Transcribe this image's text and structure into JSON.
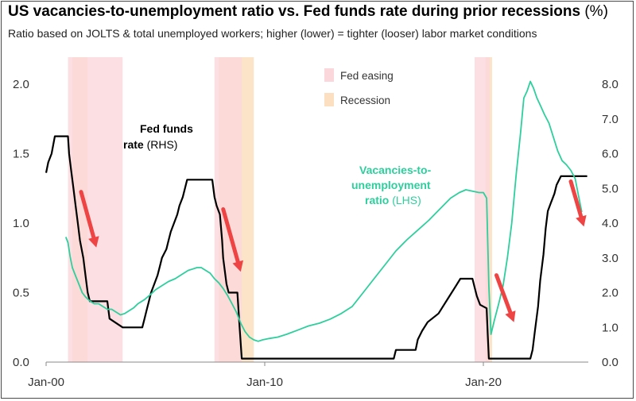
{
  "header": {
    "title": "US vacancies-to-unemployment ratio vs. Fed funds rate during prior recessions",
    "title_unit": "(%)",
    "subtitle": "Ratio based on JOLTS & total unemployed workers; higher (lower) = tighter (looser) labor market conditions"
  },
  "legend": {
    "fed_easing": "Fed easing",
    "recession": "Recession"
  },
  "annotations": {
    "fed_funds_line1": "Fed funds",
    "fed_funds_line2_bold": "rate",
    "fed_funds_line2_rhs": "(RHS)",
    "vu_line1": "Vacancies-to-",
    "vu_line2": "unemployment",
    "vu_line3_bold": "ratio",
    "vu_line3_lhs": "(LHS)"
  },
  "chart_data": {
    "type": "line",
    "title": "US vacancies-to-unemployment ratio vs. Fed funds rate during prior recessions (%)",
    "x_range": [
      2000.0,
      2024.8
    ],
    "x_ticks": [
      {
        "label": "Jan-00",
        "value": 2000
      },
      {
        "label": "Jan-10",
        "value": 2010
      },
      {
        "label": "Jan-20",
        "value": 2020
      }
    ],
    "y_left": {
      "range": [
        0,
        2.0
      ],
      "ticks": [
        "0.0",
        "0.5",
        "1.0",
        "1.5",
        "2.0"
      ]
    },
    "y_right": {
      "range": [
        0,
        8.0
      ],
      "ticks": [
        "0.0",
        "1.0",
        "2.0",
        "3.0",
        "4.0",
        "5.0",
        "6.0",
        "7.0",
        "8.0"
      ]
    },
    "colors": {
      "fed_funds": "#000000",
      "vu_ratio": "#2ecf9c",
      "fed_easing": "#fbd7dc",
      "recession": "#fcdfc0",
      "overlap": "#f6c7b3",
      "arrow": "#ef4444"
    },
    "shaded_periods": [
      {
        "type": "recession",
        "start": 2001.2,
        "end": 2001.9
      },
      {
        "type": "fed_easing",
        "start": 2001.0,
        "end": 2003.5
      },
      {
        "type": "recession",
        "start": 2007.9,
        "end": 2009.5
      },
      {
        "type": "fed_easing",
        "start": 2007.7,
        "end": 2008.95
      },
      {
        "type": "recession",
        "start": 2020.1,
        "end": 2020.4
      },
      {
        "type": "fed_easing",
        "start": 2019.6,
        "end": 2020.3
      }
    ],
    "series": [
      {
        "name": "Fed funds rate",
        "axis": "right",
        "color": "#000000",
        "points": [
          [
            2000.0,
            5.45
          ],
          [
            2000.1,
            5.75
          ],
          [
            2000.25,
            6.0
          ],
          [
            2000.4,
            6.5
          ],
          [
            2000.5,
            6.5
          ],
          [
            2001.0,
            6.5
          ],
          [
            2001.05,
            6.0
          ],
          [
            2001.15,
            5.5
          ],
          [
            2001.25,
            5.0
          ],
          [
            2001.35,
            4.5
          ],
          [
            2001.45,
            4.0
          ],
          [
            2001.55,
            3.5
          ],
          [
            2001.7,
            3.0
          ],
          [
            2001.8,
            2.5
          ],
          [
            2001.9,
            2.0
          ],
          [
            2002.0,
            1.75
          ],
          [
            2002.8,
            1.75
          ],
          [
            2002.9,
            1.25
          ],
          [
            2003.5,
            1.0
          ],
          [
            2004.4,
            1.0
          ],
          [
            2004.5,
            1.25
          ],
          [
            2004.6,
            1.5
          ],
          [
            2004.7,
            1.75
          ],
          [
            2004.8,
            2.0
          ],
          [
            2004.95,
            2.25
          ],
          [
            2005.1,
            2.5
          ],
          [
            2005.2,
            2.75
          ],
          [
            2005.3,
            3.0
          ],
          [
            2005.5,
            3.25
          ],
          [
            2005.6,
            3.5
          ],
          [
            2005.7,
            3.75
          ],
          [
            2005.85,
            4.0
          ],
          [
            2006.0,
            4.25
          ],
          [
            2006.1,
            4.5
          ],
          [
            2006.25,
            4.75
          ],
          [
            2006.45,
            5.25
          ],
          [
            2007.6,
            5.25
          ],
          [
            2007.7,
            4.75
          ],
          [
            2007.8,
            4.5
          ],
          [
            2007.95,
            4.25
          ],
          [
            2008.05,
            3.5
          ],
          [
            2008.1,
            3.0
          ],
          [
            2008.25,
            2.25
          ],
          [
            2008.35,
            2.0
          ],
          [
            2008.75,
            2.0
          ],
          [
            2008.8,
            1.5
          ],
          [
            2008.85,
            1.0
          ],
          [
            2008.95,
            0.1
          ],
          [
            2015.9,
            0.1
          ],
          [
            2016.0,
            0.35
          ],
          [
            2016.9,
            0.35
          ],
          [
            2017.0,
            0.65
          ],
          [
            2017.2,
            0.9
          ],
          [
            2017.45,
            1.15
          ],
          [
            2017.95,
            1.4
          ],
          [
            2018.2,
            1.65
          ],
          [
            2018.45,
            1.9
          ],
          [
            2018.7,
            2.15
          ],
          [
            2018.95,
            2.4
          ],
          [
            2019.5,
            2.4
          ],
          [
            2019.6,
            2.15
          ],
          [
            2019.7,
            1.9
          ],
          [
            2019.85,
            1.65
          ],
          [
            2020.15,
            1.55
          ],
          [
            2020.2,
            0.8
          ],
          [
            2020.25,
            0.1
          ],
          [
            2022.15,
            0.1
          ],
          [
            2022.25,
            0.35
          ],
          [
            2022.35,
            0.85
          ],
          [
            2022.5,
            1.6
          ],
          [
            2022.6,
            2.35
          ],
          [
            2022.75,
            3.1
          ],
          [
            2022.85,
            3.85
          ],
          [
            2022.95,
            4.35
          ],
          [
            2023.1,
            4.6
          ],
          [
            2023.25,
            4.85
          ],
          [
            2023.35,
            5.1
          ],
          [
            2023.55,
            5.35
          ],
          [
            2024.75,
            5.35
          ]
        ]
      },
      {
        "name": "Vacancies-to-unemployment ratio",
        "axis": "left",
        "color": "#2ecf9c",
        "points": [
          [
            2000.9,
            0.9
          ],
          [
            2001.0,
            0.86
          ],
          [
            2001.1,
            0.76
          ],
          [
            2001.2,
            0.68
          ],
          [
            2001.35,
            0.62
          ],
          [
            2001.5,
            0.56
          ],
          [
            2001.65,
            0.5
          ],
          [
            2001.8,
            0.47
          ],
          [
            2002.0,
            0.44
          ],
          [
            2002.2,
            0.42
          ],
          [
            2002.4,
            0.42
          ],
          [
            2002.6,
            0.4
          ],
          [
            2002.8,
            0.38
          ],
          [
            2003.0,
            0.38
          ],
          [
            2003.2,
            0.36
          ],
          [
            2003.4,
            0.34
          ],
          [
            2003.6,
            0.35
          ],
          [
            2003.8,
            0.37
          ],
          [
            2004.0,
            0.39
          ],
          [
            2004.2,
            0.42
          ],
          [
            2004.5,
            0.45
          ],
          [
            2004.8,
            0.49
          ],
          [
            2005.0,
            0.52
          ],
          [
            2005.3,
            0.55
          ],
          [
            2005.6,
            0.58
          ],
          [
            2005.9,
            0.6
          ],
          [
            2006.2,
            0.63
          ],
          [
            2006.5,
            0.66
          ],
          [
            2006.7,
            0.67
          ],
          [
            2006.9,
            0.68
          ],
          [
            2007.1,
            0.68
          ],
          [
            2007.3,
            0.66
          ],
          [
            2007.5,
            0.64
          ],
          [
            2007.7,
            0.6
          ],
          [
            2007.9,
            0.57
          ],
          [
            2008.1,
            0.53
          ],
          [
            2008.3,
            0.48
          ],
          [
            2008.5,
            0.42
          ],
          [
            2008.7,
            0.36
          ],
          [
            2008.9,
            0.28
          ],
          [
            2009.1,
            0.22
          ],
          [
            2009.3,
            0.18
          ],
          [
            2009.5,
            0.16
          ],
          [
            2009.7,
            0.15
          ],
          [
            2009.9,
            0.16
          ],
          [
            2010.2,
            0.17
          ],
          [
            2010.6,
            0.18
          ],
          [
            2011.0,
            0.2
          ],
          [
            2011.5,
            0.23
          ],
          [
            2012.0,
            0.26
          ],
          [
            2012.5,
            0.28
          ],
          [
            2013.0,
            0.31
          ],
          [
            2013.5,
            0.35
          ],
          [
            2014.0,
            0.4
          ],
          [
            2014.5,
            0.5
          ],
          [
            2015.0,
            0.6
          ],
          [
            2015.5,
            0.7
          ],
          [
            2016.0,
            0.8
          ],
          [
            2016.5,
            0.88
          ],
          [
            2017.0,
            0.95
          ],
          [
            2017.5,
            1.02
          ],
          [
            2018.0,
            1.1
          ],
          [
            2018.5,
            1.18
          ],
          [
            2018.9,
            1.22
          ],
          [
            2019.2,
            1.24
          ],
          [
            2019.5,
            1.23
          ],
          [
            2019.8,
            1.22
          ],
          [
            2020.0,
            1.22
          ],
          [
            2020.15,
            1.18
          ],
          [
            2020.25,
            0.55
          ],
          [
            2020.35,
            0.2
          ],
          [
            2020.5,
            0.3
          ],
          [
            2020.7,
            0.42
          ],
          [
            2020.9,
            0.55
          ],
          [
            2021.1,
            0.75
          ],
          [
            2021.3,
            1.0
          ],
          [
            2021.5,
            1.35
          ],
          [
            2021.7,
            1.65
          ],
          [
            2021.85,
            1.9
          ],
          [
            2022.0,
            1.95
          ],
          [
            2022.15,
            2.02
          ],
          [
            2022.3,
            1.97
          ],
          [
            2022.45,
            1.9
          ],
          [
            2022.6,
            1.85
          ],
          [
            2022.8,
            1.78
          ],
          [
            2023.0,
            1.72
          ],
          [
            2023.2,
            1.62
          ],
          [
            2023.4,
            1.52
          ],
          [
            2023.6,
            1.45
          ],
          [
            2023.8,
            1.42
          ],
          [
            2024.0,
            1.38
          ],
          [
            2024.2,
            1.32
          ],
          [
            2024.35,
            1.2
          ],
          [
            2024.5,
            1.08
          ]
        ]
      }
    ],
    "arrows_drawn": 4
  }
}
